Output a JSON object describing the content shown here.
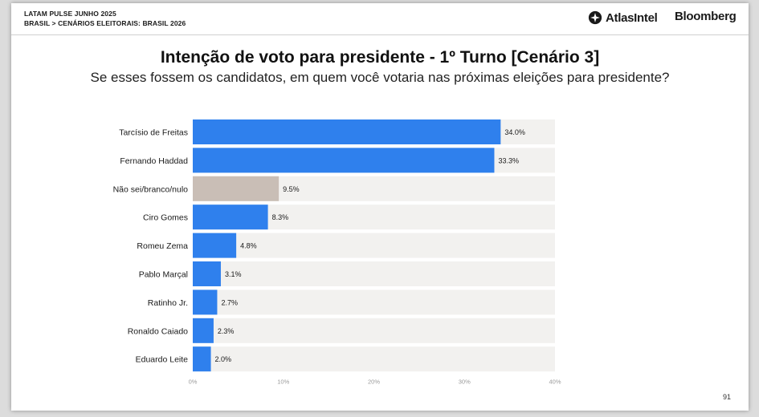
{
  "header": {
    "line1": "LATAM PULSE JUNHO 2025",
    "line2": "BRASIL > CENÁRIOS ELEITORAIS: BRASIL 2026",
    "logo_atlas": "AtlasIntel",
    "logo_bloomberg": "Bloomberg"
  },
  "page_number": "91",
  "colors": {
    "bar_candidate": "#2f80ed",
    "bar_undecided": "#c9beb6",
    "track": "#f2f1ef"
  },
  "chart_data": {
    "type": "bar",
    "orientation": "horizontal",
    "title": "Intenção de voto para presidente - 1º Turno [Cenário 3]",
    "subtitle": "Se esses fossem os candidatos, em quem você votaria nas próximas eleições para presidente?",
    "categories": [
      "Tarcísio de Freitas",
      "Fernando Haddad",
      "Não sei/branco/nulo",
      "Ciro Gomes",
      "Romeu Zema",
      "Pablo Marçal",
      "Ratinho Jr.",
      "Ronaldo Caiado",
      "Eduardo Leite"
    ],
    "values": [
      34.0,
      33.3,
      9.5,
      8.3,
      4.8,
      3.1,
      2.7,
      2.3,
      2.0
    ],
    "value_labels": [
      "34.0%",
      "33.3%",
      "9.5%",
      "8.3%",
      "4.8%",
      "3.1%",
      "2.7%",
      "2.3%",
      "2.0%"
    ],
    "highlight": [
      false,
      false,
      true,
      false,
      false,
      false,
      false,
      false,
      false
    ],
    "xlim": [
      0,
      40
    ],
    "xticks": [
      0,
      10,
      20,
      30,
      40
    ],
    "xtick_labels": [
      "0%",
      "10%",
      "20%",
      "30%",
      "40%"
    ],
    "grid": false,
    "legend": "none"
  }
}
